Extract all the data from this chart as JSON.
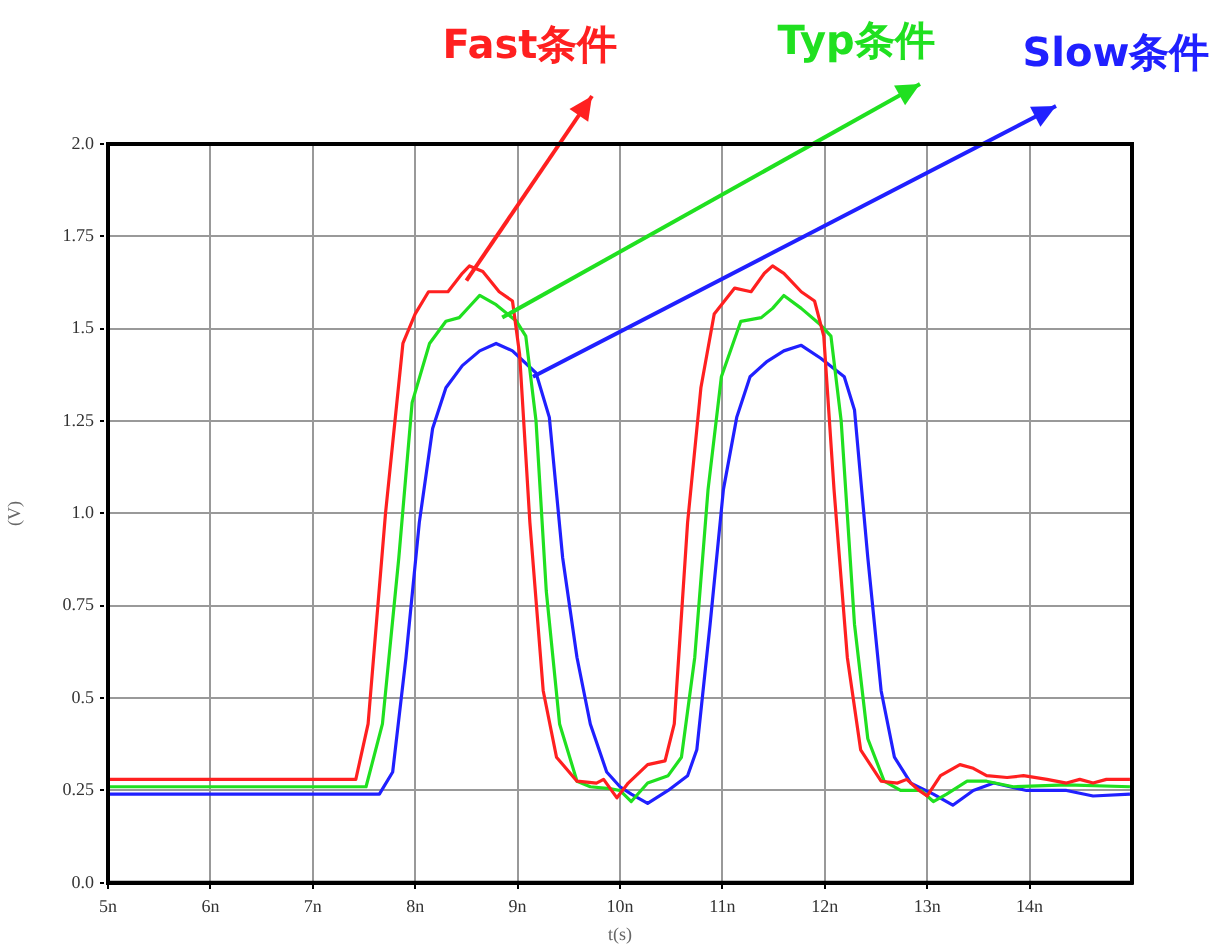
{
  "chart_data": {
    "type": "line",
    "xlabel": "t(s)",
    "ylabel": "(V)",
    "xlim": [
      5,
      15
    ],
    "xticks": [
      {
        "value": 5,
        "label": "5n"
      },
      {
        "value": 6,
        "label": "6n"
      },
      {
        "value": 7,
        "label": "7n"
      },
      {
        "value": 8,
        "label": "8n"
      },
      {
        "value": 9,
        "label": "9n"
      },
      {
        "value": 10,
        "label": "10n"
      },
      {
        "value": 11,
        "label": "11n"
      },
      {
        "value": 12,
        "label": "12n"
      },
      {
        "value": 13,
        "label": "13n"
      },
      {
        "value": 14,
        "label": "14n"
      }
    ],
    "ylim": [
      0,
      2
    ],
    "yticks": [
      {
        "value": 0,
        "label": "0.0"
      },
      0.25,
      0.5,
      0.75,
      {
        "value": 1,
        "label": "1.0"
      },
      1.25,
      1.5,
      1.75,
      {
        "value": 2,
        "label": "2.0"
      }
    ],
    "grid": true,
    "marker": "none",
    "line_style": "solid",
    "series": [
      {
        "color": "#ff2020",
        "x": [
          5,
          7.42,
          7.54,
          7.71,
          7.88,
          8.0,
          8.13,
          8.32,
          8.46,
          8.53,
          8.66,
          8.82,
          8.95,
          9.02,
          9.12,
          9.25,
          9.38,
          9.58,
          9.77,
          9.84,
          9.97,
          10.08,
          10.27,
          10.44,
          10.53,
          10.66,
          10.79,
          10.92,
          11.12,
          11.28,
          11.41,
          11.49,
          11.6,
          11.77,
          11.9,
          11.99,
          12.09,
          12.22,
          12.35,
          12.55,
          12.71,
          12.8,
          12.92,
          13.0,
          13.13,
          13.32,
          13.45,
          13.58,
          13.78,
          13.94,
          14.17,
          14.36,
          14.49,
          14.62,
          14.75,
          14.98
        ],
        "values": [
          0.28,
          0.28,
          0.43,
          1.0,
          1.46,
          1.54,
          1.6,
          1.6,
          1.65,
          1.67,
          1.655,
          1.6,
          1.575,
          1.43,
          0.975,
          0.52,
          0.34,
          0.275,
          0.27,
          0.28,
          0.23,
          0.27,
          0.32,
          0.33,
          0.43,
          0.975,
          1.34,
          1.54,
          1.61,
          1.6,
          1.65,
          1.67,
          1.65,
          1.6,
          1.575,
          1.48,
          1.065,
          0.61,
          0.36,
          0.275,
          0.27,
          0.28,
          0.25,
          0.235,
          0.29,
          0.32,
          0.31,
          0.29,
          0.285,
          0.29,
          0.28,
          0.27,
          0.28,
          0.27,
          0.28,
          0.28
        ]
      },
      {
        "color": "#20e020",
        "x": [
          5,
          7.52,
          7.68,
          7.84,
          7.97,
          8.14,
          8.3,
          8.43,
          8.53,
          8.63,
          8.79,
          8.99,
          9.08,
          9.18,
          9.28,
          9.41,
          9.58,
          9.71,
          9.9,
          10.0,
          10.11,
          10.27,
          10.47,
          10.6,
          10.73,
          10.86,
          10.99,
          11.18,
          11.38,
          11.49,
          11.6,
          11.77,
          11.96,
          12.06,
          12.16,
          12.29,
          12.42,
          12.58,
          12.74,
          12.94,
          13.06,
          13.19,
          13.39,
          13.58,
          13.84,
          14.36,
          14.98
        ],
        "values": [
          0.26,
          0.26,
          0.43,
          0.88,
          1.3,
          1.46,
          1.52,
          1.53,
          1.56,
          1.59,
          1.565,
          1.52,
          1.48,
          1.25,
          0.79,
          0.43,
          0.275,
          0.26,
          0.255,
          0.25,
          0.22,
          0.27,
          0.29,
          0.34,
          0.61,
          1.065,
          1.37,
          1.52,
          1.53,
          1.555,
          1.59,
          1.555,
          1.51,
          1.48,
          1.25,
          0.7,
          0.39,
          0.275,
          0.25,
          0.25,
          0.22,
          0.24,
          0.275,
          0.275,
          0.26,
          0.265,
          0.26
        ]
      },
      {
        "color": "#2020ff",
        "x": [
          5,
          7.65,
          7.78,
          7.91,
          8.04,
          8.17,
          8.3,
          8.46,
          8.63,
          8.79,
          8.95,
          9.18,
          9.31,
          9.44,
          9.58,
          9.71,
          9.87,
          10.0,
          10.11,
          10.27,
          10.47,
          10.66,
          10.75,
          10.88,
          11.01,
          11.14,
          11.27,
          11.43,
          11.6,
          11.77,
          11.96,
          12.19,
          12.29,
          12.42,
          12.55,
          12.68,
          12.84,
          13.06,
          13.25,
          13.45,
          13.65,
          13.97,
          14.36,
          14.62,
          14.98
        ],
        "values": [
          0.24,
          0.24,
          0.3,
          0.61,
          0.975,
          1.23,
          1.34,
          1.4,
          1.44,
          1.46,
          1.44,
          1.38,
          1.26,
          0.88,
          0.61,
          0.43,
          0.3,
          0.26,
          0.24,
          0.215,
          0.25,
          0.29,
          0.36,
          0.7,
          1.065,
          1.26,
          1.37,
          1.41,
          1.44,
          1.455,
          1.42,
          1.37,
          1.28,
          0.88,
          0.52,
          0.34,
          0.27,
          0.24,
          0.21,
          0.25,
          0.27,
          0.25,
          0.25,
          0.235,
          0.24
        ]
      }
    ],
    "annotations": [
      {
        "text": "Fast条件",
        "x": 8.5,
        "y": 1.63
      },
      {
        "text": "Typ条件",
        "x": 8.85,
        "y": 1.53
      },
      {
        "text": "Slow条件",
        "x": 9.15,
        "y": 1.37
      }
    ]
  }
}
